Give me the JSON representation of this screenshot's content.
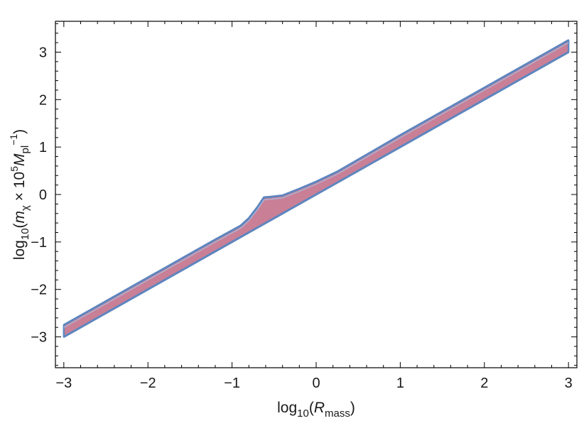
{
  "chart_data": {
    "type": "area",
    "title": "",
    "xlabel": {
      "prefix": "log",
      "sub": "10",
      "open": "(",
      "var": "R",
      "var_sub": "mass",
      "close": ")"
    },
    "ylabel": {
      "prefix": "log",
      "sub": "10",
      "open": "(",
      "var": "m",
      "var_sub": "χ",
      "mid": " × 10",
      "power": "5",
      "var2": "M",
      "var2_sub": "pl",
      "power2": "−1",
      "close": ")"
    },
    "xlim": [
      -3.1,
      3.1
    ],
    "ylim": [
      -3.65,
      3.65
    ],
    "xticks": [
      -3,
      -2,
      -1,
      0,
      1,
      2,
      3
    ],
    "xtick_labels": [
      "−3",
      "−2",
      "−1",
      "0",
      "1",
      "2",
      "3"
    ],
    "yticks": [
      -3,
      -2,
      -1,
      0,
      1,
      2,
      3
    ],
    "ytick_labels": [
      "−3",
      "−2",
      "−1",
      "0",
      "1",
      "2",
      "3"
    ],
    "grid": false,
    "frame": true,
    "series": [
      {
        "role": "upper boundary",
        "x": [
          -3.0,
          -2.0,
          -1.2,
          -0.9,
          -0.8,
          -0.7,
          -0.62,
          -0.55,
          -0.4,
          -0.2,
          0.0,
          0.25,
          1.0,
          2.0,
          3.0
        ],
        "y": [
          -2.75,
          -1.75,
          -0.95,
          -0.66,
          -0.5,
          -0.27,
          -0.06,
          -0.05,
          -0.02,
          0.12,
          0.27,
          0.48,
          1.25,
          2.25,
          3.25
        ]
      },
      {
        "role": "lower boundary",
        "x": [
          -3.0,
          -2.0,
          -1.0,
          0.0,
          1.0,
          2.0,
          3.0
        ],
        "y": [
          -3.0,
          -2.0,
          -1.0,
          0.0,
          1.0,
          2.0,
          3.0
        ]
      }
    ],
    "colors": {
      "fill": "#c97f96",
      "edge": "#5e86bf",
      "edge_light": "#a7c0e0",
      "frame": "#000000"
    }
  }
}
